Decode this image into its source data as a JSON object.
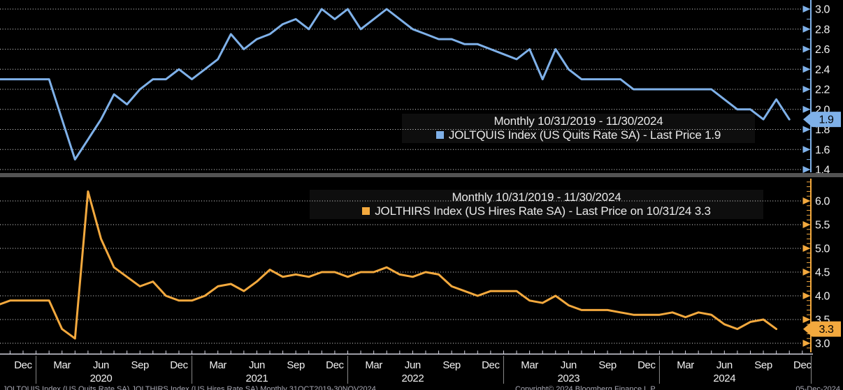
{
  "chart_data": [
    {
      "type": "line",
      "panel": "top",
      "title": "Monthly 10/31/2019 - 11/30/2024",
      "series_label": "JOLTQUIS Index (US Quits Rate SA) - Last Price 1.9",
      "security": "JOLTQUIS Index",
      "series_name": "US Quits Rate SA",
      "frequency": "Monthly",
      "color": "#7FB1E9",
      "last_price": "1.9",
      "x_start": "Oct 2019",
      "x_end": "Nov 2024",
      "values": [
        2.3,
        2.3,
        2.3,
        2.3,
        2.3,
        1.9,
        1.5,
        1.7,
        1.9,
        2.15,
        2.05,
        2.2,
        2.3,
        2.3,
        2.4,
        2.3,
        2.4,
        2.5,
        2.75,
        2.6,
        2.7,
        2.75,
        2.85,
        2.9,
        2.8,
        3.0,
        2.9,
        3.0,
        2.8,
        2.9,
        3.0,
        2.9,
        2.8,
        2.75,
        2.7,
        2.7,
        2.65,
        2.65,
        2.6,
        2.55,
        2.5,
        2.6,
        2.3,
        2.6,
        2.4,
        2.3,
        2.3,
        2.3,
        2.3,
        2.2,
        2.2,
        2.2,
        2.2,
        2.2,
        2.2,
        2.2,
        2.1,
        2.0,
        2.0,
        1.9,
        2.1,
        1.9
      ],
      "yticks": [
        "3.0",
        "2.8",
        "2.6",
        "2.4",
        "2.2",
        "2.0",
        "1.8",
        "1.6",
        "1.4"
      ],
      "ylim": [
        1.4,
        3.0
      ],
      "grid": "dotted",
      "legend_position": "center"
    },
    {
      "type": "line",
      "panel": "bottom",
      "title": "Monthly 10/31/2019 - 11/30/2024",
      "series_label": "JOLTHIRS Index (US Hires Rate SA) - Last Price on 10/31/24 3.3",
      "security": "JOLTHIRS Index",
      "series_name": "US Hires Rate SA",
      "frequency": "Monthly",
      "color": "#F3A93E",
      "last_price": "3.3",
      "x_start": "Oct 2019",
      "x_end": "Oct 2024",
      "values": [
        3.8,
        3.9,
        3.9,
        3.9,
        3.9,
        3.3,
        3.1,
        6.2,
        5.2,
        4.6,
        4.4,
        4.2,
        4.3,
        4.0,
        3.9,
        3.9,
        4.0,
        4.2,
        4.25,
        4.1,
        4.3,
        4.55,
        4.4,
        4.45,
        4.4,
        4.5,
        4.5,
        4.4,
        4.5,
        4.5,
        4.6,
        4.45,
        4.4,
        4.5,
        4.45,
        4.2,
        4.1,
        4.0,
        4.1,
        4.1,
        4.1,
        3.9,
        3.85,
        4.0,
        3.8,
        3.7,
        3.7,
        3.7,
        3.65,
        3.6,
        3.6,
        3.6,
        3.65,
        3.55,
        3.65,
        3.6,
        3.4,
        3.3,
        3.45,
        3.5,
        3.3
      ],
      "yticks": [
        "6.0",
        "5.5",
        "5.0",
        "4.5",
        "4.0",
        "3.5",
        "3.0"
      ],
      "ylim": [
        3.0,
        6.0
      ],
      "grid": "dotted",
      "legend_position": "center"
    }
  ],
  "x_axis": {
    "tick_labels": [
      "Dec",
      "Mar",
      "Jun",
      "Sep",
      "Dec",
      "Mar",
      "Jun",
      "Sep",
      "Dec",
      "Mar",
      "Jun",
      "Sep",
      "Dec",
      "Mar",
      "Jun",
      "Sep",
      "Dec",
      "Mar",
      "Jun",
      "Sep",
      "Dec"
    ],
    "year_labels": [
      "2020",
      "2021",
      "2022",
      "2023",
      "2024"
    ]
  },
  "footer": {
    "left": "JOLTQUIS Index (US Quits Rate SA)  JOLTHIRS Index (US Hires Rate SA)  Monthly 31OCT2019-30NOV2024",
    "center": "Copyright© 2024 Bloomberg Finance L.P.",
    "right": "05-Dec-2024"
  }
}
